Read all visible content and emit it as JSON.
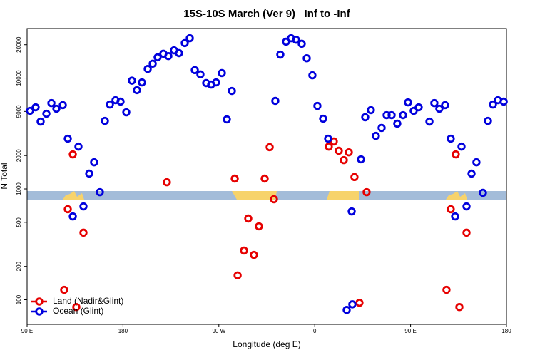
{
  "chart_data": {
    "type": "scatter",
    "title": "15S-10S March (Ver 9)   Inf to -Inf",
    "xlabel": "Longitude (deg E)",
    "ylabel": "N Total",
    "xlim": [
      90,
      540
    ],
    "xticks": [
      {
        "value": 90,
        "label": "90 E"
      },
      {
        "value": 180,
        "label": "180"
      },
      {
        "value": 270,
        "label": "90 W"
      },
      {
        "value": 360,
        "label": "0"
      },
      {
        "value": 450,
        "label": "90 E"
      },
      {
        "value": 540,
        "label": "180"
      }
    ],
    "ylim": [
      60,
      28000
    ],
    "yticks": [
      100,
      200,
      500,
      1000,
      2000,
      5000,
      10000,
      20000
    ],
    "log_y": true,
    "legend": "bottom-left",
    "series": [
      {
        "name": "Land (Nadir&Glint)",
        "color": "#e60000",
        "x": [
          124.8,
          128.2,
          132.9,
          136.2,
          142.9,
          221.2,
          284.9,
          287.6,
          293.6,
          297.6,
          302.9,
          307.6,
          313.0,
          317.7,
          321.7,
          373.2,
          377.9,
          382.6,
          387.3,
          392.0,
          397.3,
          402.0,
          408.7,
          483.7,
          487.7,
          492.4,
          495.8,
          502.5
        ],
        "values": [
          123,
          656,
          2050,
          86,
          403,
          1150,
          1240,
          166,
          278,
          541,
          254,
          460,
          1240,
          2380,
          807,
          2410,
          2680,
          2210,
          1820,
          2140,
          1280,
          94,
          935,
          123,
          656,
          2050,
          86,
          403
        ]
      },
      {
        "name": "Ocean (Glint)",
        "color": "#0000dd",
        "x": [
          92.7,
          98.0,
          102.7,
          108.1,
          112.8,
          117.5,
          123.5,
          128.2,
          132.9,
          138.2,
          142.9,
          148.3,
          152.9,
          158.3,
          163.0,
          167.7,
          173.0,
          177.7,
          183.1,
          188.4,
          193.1,
          197.8,
          203.2,
          207.9,
          212.5,
          217.9,
          222.6,
          227.9,
          232.6,
          238.0,
          242.7,
          247.4,
          252.7,
          258.1,
          262.8,
          267.4,
          272.8,
          277.5,
          282.2,
          323.0,
          327.7,
          333.1,
          337.8,
          342.4,
          347.8,
          352.5,
          357.8,
          362.5,
          367.9,
          372.6,
          390.0,
          394.7,
          395.3,
          403.4,
          407.4,
          412.7,
          417.4,
          422.8,
          427.5,
          432.2,
          437.5,
          442.9,
          447.6,
          452.9,
          457.6,
          467.7,
          472.3,
          477.0,
          482.4,
          487.7,
          491.8,
          497.8,
          502.5,
          507.2,
          511.8,
          517.9,
          522.6,
          527.3,
          532.0,
          537.4
        ],
        "values": [
          5060,
          5450,
          4050,
          4770,
          5950,
          5290,
          5700,
          2840,
          565,
          2410,
          695,
          1375,
          1740,
          935,
          4110,
          5780,
          6320,
          6140,
          4910,
          9480,
          7790,
          9140,
          12100,
          13500,
          15400,
          16600,
          15800,
          17800,
          16800,
          20700,
          22900,
          11800,
          10800,
          9020,
          8750,
          9150,
          11100,
          4240,
          7660,
          6230,
          16300,
          21300,
          22900,
          22200,
          20400,
          15100,
          10600,
          5610,
          4300,
          2840,
          81,
          627,
          91,
          1850,
          4430,
          5140,
          3010,
          3550,
          4630,
          4630,
          3880,
          4630,
          6040,
          5060,
          5450,
          4050,
          5950,
          5290,
          5700,
          2840,
          565,
          2410,
          695,
          1375,
          1740,
          922,
          4110,
          5780,
          6320,
          6140
        ]
      }
    ]
  }
}
